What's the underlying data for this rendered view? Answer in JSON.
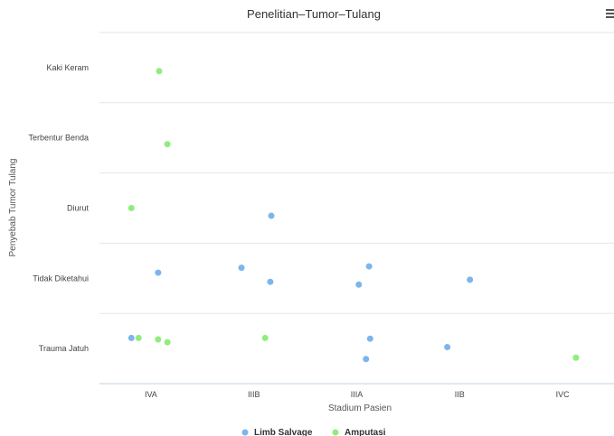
{
  "chart_data": {
    "type": "scatter",
    "title": "Penelitian–Tumor–Tulang",
    "xlabel": "Stadium Pasien",
    "ylabel": "Penyebab Tumor Tulang",
    "x_categories": [
      "IVA",
      "IIIB",
      "IIIA",
      "IIB",
      "IVC"
    ],
    "y_categories": [
      "Trauma Jatuh",
      "Tidak Diketahui",
      "Diurut",
      "Terbentur Benda",
      "Kaki Keram"
    ],
    "grid": true,
    "legend_position": "bottom-center",
    "series": [
      {
        "name": "Limb Salvage",
        "color": "#7cb5ec",
        "points": [
          {
            "x": "IVA",
            "y": "Trauma Jatuh",
            "x_offset": -0.19,
            "y_offset": 0.15
          },
          {
            "x": "IIIB",
            "y": "Diurut",
            "x_offset": 0.17,
            "y_offset": -0.11
          },
          {
            "x": "IVA",
            "y": "Tidak Diketahui",
            "x_offset": 0.07,
            "y_offset": 0.08
          },
          {
            "x": "IIIB",
            "y": "Tidak Diketahui",
            "x_offset": -0.12,
            "y_offset": 0.15
          },
          {
            "x": "IIIB",
            "y": "Tidak Diketahui",
            "x_offset": 0.16,
            "y_offset": -0.05
          },
          {
            "x": "IIIA",
            "y": "Tidak Diketahui",
            "x_offset": 0.12,
            "y_offset": 0.17
          },
          {
            "x": "IIIA",
            "y": "Tidak Diketahui",
            "x_offset": 0.02,
            "y_offset": -0.09
          },
          {
            "x": "IIB",
            "y": "Tidak Diketahui",
            "x_offset": 0.1,
            "y_offset": -0.02
          },
          {
            "x": "IIIA",
            "y": "Trauma Jatuh",
            "x_offset": 0.13,
            "y_offset": 0.14
          },
          {
            "x": "IIIA",
            "y": "Trauma Jatuh",
            "x_offset": 0.09,
            "y_offset": -0.15
          },
          {
            "x": "IIB",
            "y": "Trauma Jatuh",
            "x_offset": -0.12,
            "y_offset": 0.02
          }
        ]
      },
      {
        "name": "Amputasi",
        "color": "#90ed7d",
        "points": [
          {
            "x": "IVA",
            "y": "Kaki Keram",
            "x_offset": 0.08,
            "y_offset": -0.05
          },
          {
            "x": "IVA",
            "y": "Terbentur Benda",
            "x_offset": 0.16,
            "y_offset": -0.09
          },
          {
            "x": "IVA",
            "y": "Diurut",
            "x_offset": -0.19,
            "y_offset": 0.0
          },
          {
            "x": "IVA",
            "y": "Trauma Jatuh",
            "x_offset": -0.12,
            "y_offset": 0.15
          },
          {
            "x": "IVA",
            "y": "Trauma Jatuh",
            "x_offset": 0.07,
            "y_offset": 0.13
          },
          {
            "x": "IVA",
            "y": "Trauma Jatuh",
            "x_offset": 0.16,
            "y_offset": 0.09
          },
          {
            "x": "IIIB",
            "y": "Trauma Jatuh",
            "x_offset": 0.11,
            "y_offset": 0.15
          },
          {
            "x": "IVC",
            "y": "Trauma Jatuh",
            "x_offset": 0.13,
            "y_offset": -0.13
          }
        ]
      }
    ]
  }
}
